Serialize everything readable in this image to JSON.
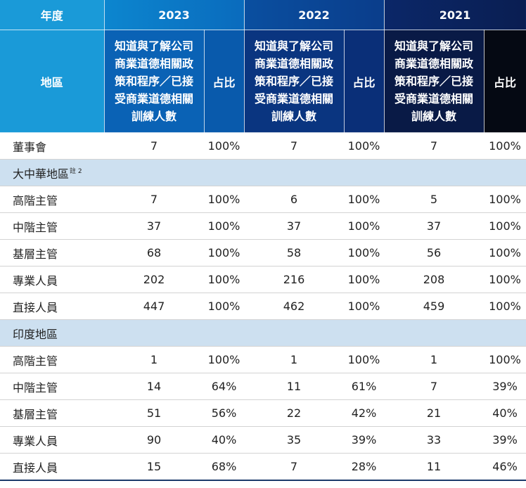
{
  "header": {
    "corner_label": "年度",
    "region_label": "地區",
    "years": [
      "2023",
      "2022",
      "2021"
    ],
    "count_label": "知道與了解公司商業道德相關政策和程序／已接受商業道德相關訓練人數",
    "count_label_lines": [
      "知道與了解公司",
      "商業道德相關政",
      "策和程序／已接",
      "受商業道德相關",
      "訓練人數"
    ],
    "ratio_label": "占比"
  },
  "board": {
    "label": "董事會",
    "values": [
      "7",
      "100%",
      "7",
      "100%",
      "7",
      "100%"
    ]
  },
  "sections": [
    {
      "title": "大中華地區",
      "note": "註 2",
      "rows": [
        {
          "label": "高階主管",
          "values": [
            "7",
            "100%",
            "6",
            "100%",
            "5",
            "100%"
          ]
        },
        {
          "label": "中階主管",
          "values": [
            "37",
            "100%",
            "37",
            "100%",
            "37",
            "100%"
          ]
        },
        {
          "label": "基層主管",
          "values": [
            "68",
            "100%",
            "58",
            "100%",
            "56",
            "100%"
          ]
        },
        {
          "label": "專業人員",
          "values": [
            "202",
            "100%",
            "216",
            "100%",
            "208",
            "100%"
          ]
        },
        {
          "label": "直接人員",
          "values": [
            "447",
            "100%",
            "462",
            "100%",
            "459",
            "100%"
          ]
        }
      ]
    },
    {
      "title": "印度地區",
      "note": "",
      "rows": [
        {
          "label": "高階主管",
          "values": [
            "1",
            "100%",
            "1",
            "100%",
            "1",
            "100%"
          ]
        },
        {
          "label": "中階主管",
          "values": [
            "14",
            "64%",
            "11",
            "61%",
            "7",
            "39%"
          ]
        },
        {
          "label": "基層主管",
          "values": [
            "51",
            "56%",
            "22",
            "42%",
            "21",
            "40%"
          ]
        },
        {
          "label": "專業人員",
          "values": [
            "90",
            "40%",
            "35",
            "39%",
            "33",
            "39%"
          ]
        },
        {
          "label": "直接人員",
          "values": [
            "15",
            "68%",
            "7",
            "28%",
            "11",
            "46%"
          ]
        }
      ]
    }
  ]
}
